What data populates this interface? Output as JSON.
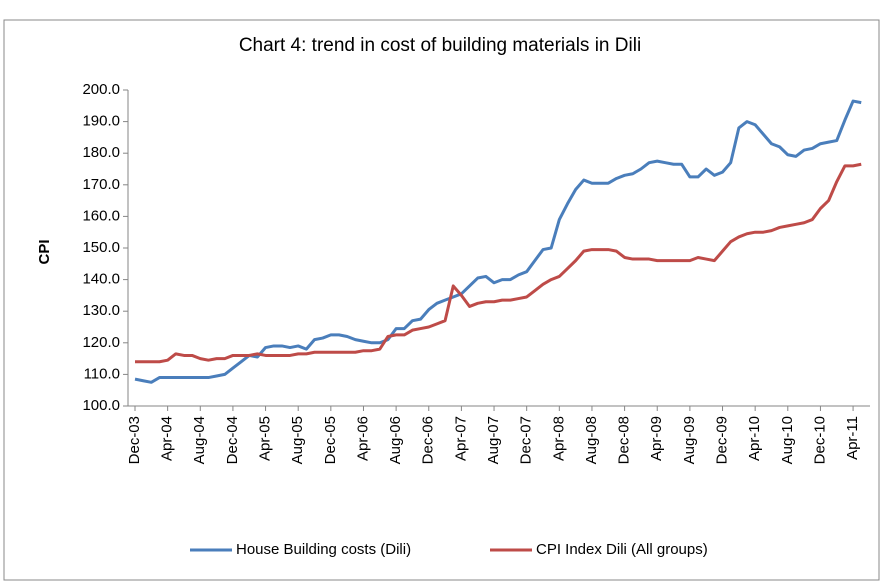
{
  "chart_data": {
    "type": "line",
    "title": "Chart 4: trend in cost of building materials in Dili",
    "y_label": "CPI",
    "categories": [
      "Dec-03",
      null,
      null,
      null,
      "Apr-04",
      null,
      null,
      null,
      "Aug-04",
      null,
      null,
      null,
      "Dec-04",
      null,
      null,
      null,
      "Apr-05",
      null,
      null,
      null,
      "Aug-05",
      null,
      null,
      null,
      "Dec-05",
      null,
      null,
      null,
      "Apr-06",
      null,
      null,
      null,
      "Aug-06",
      null,
      null,
      null,
      "Dec-06",
      null,
      null,
      null,
      "Apr-07",
      null,
      null,
      null,
      "Aug-07",
      null,
      null,
      null,
      "Dec-07",
      null,
      null,
      null,
      "Apr-08",
      null,
      null,
      null,
      "Aug-08",
      null,
      null,
      null,
      "Dec-08",
      null,
      null,
      null,
      "Apr-09",
      null,
      null,
      null,
      "Aug-09",
      null,
      null,
      null,
      "Dec-09",
      null,
      null,
      null,
      "Apr-10",
      null,
      null,
      null,
      "Aug-10",
      null,
      null,
      null,
      "Dec-10",
      null,
      null,
      null,
      "Apr-11",
      null
    ],
    "series": [
      {
        "name": "House Building costs (Dili)",
        "color": "#4a7ebb",
        "values": [
          108.5,
          108,
          107.5,
          109,
          109,
          109,
          109,
          109,
          109,
          109,
          109.5,
          110,
          112,
          114,
          116,
          115.5,
          118.5,
          119,
          119,
          118.5,
          119,
          118,
          121,
          121.5,
          122.5,
          122.5,
          122,
          121,
          120.5,
          120,
          120,
          121,
          124.5,
          124.5,
          127,
          127.5,
          130.5,
          132.5,
          133.5,
          134.5,
          135.5,
          138,
          140.5,
          141,
          139,
          140,
          140,
          141.5,
          142.5,
          146,
          149.5,
          150,
          159,
          164,
          168.5,
          171.5,
          170.5,
          170.5,
          170.5,
          172,
          173,
          173.5,
          175,
          177,
          177.5,
          177,
          176.5,
          176.5,
          172.5,
          172.5,
          175,
          173,
          174,
          177,
          188,
          190,
          189,
          186,
          183,
          182,
          179.5,
          179,
          181,
          181.5,
          183,
          183.5,
          184,
          190.5,
          196.5,
          196
        ]
      },
      {
        "name": "CPI Index Dili (All groups)",
        "color": "#be4b48",
        "values": [
          114,
          114,
          114,
          114,
          114.5,
          116.5,
          116,
          116,
          115,
          114.5,
          115,
          115,
          116,
          116,
          116,
          116.5,
          116,
          116,
          116,
          116,
          116.5,
          116.5,
          117,
          117,
          117,
          117,
          117,
          117,
          117.5,
          117.5,
          118,
          122,
          122.5,
          122.5,
          124,
          124.5,
          125,
          126,
          127,
          138,
          135,
          131.5,
          132.5,
          133,
          133,
          133.5,
          133.5,
          134,
          134.5,
          136.5,
          138.5,
          140,
          141,
          143.5,
          146,
          149,
          149.5,
          149.5,
          149.5,
          149,
          147,
          146.5,
          146.5,
          146.5,
          146,
          146,
          146,
          146,
          146,
          147,
          146.5,
          146,
          149,
          152,
          153.5,
          154.5,
          155,
          155,
          155.5,
          156.5,
          157,
          157.5,
          158,
          159,
          162.5,
          165,
          171,
          176,
          176,
          176.5
        ]
      }
    ],
    "ylim": [
      100,
      200
    ],
    "yticks": [
      {
        "value": 100,
        "label": "100.0"
      },
      {
        "value": 110,
        "label": "110.0"
      },
      {
        "value": 120,
        "label": "120.0"
      },
      {
        "value": 130,
        "label": "130.0"
      },
      {
        "value": 140,
        "label": "140.0"
      },
      {
        "value": 150,
        "label": "150.0"
      },
      {
        "value": 160,
        "label": "160.0"
      },
      {
        "value": 170,
        "label": "170.0"
      },
      {
        "value": 180,
        "label": "180.0"
      },
      {
        "value": 190,
        "label": "190.0"
      },
      {
        "value": 200,
        "label": "200.0"
      }
    ]
  }
}
